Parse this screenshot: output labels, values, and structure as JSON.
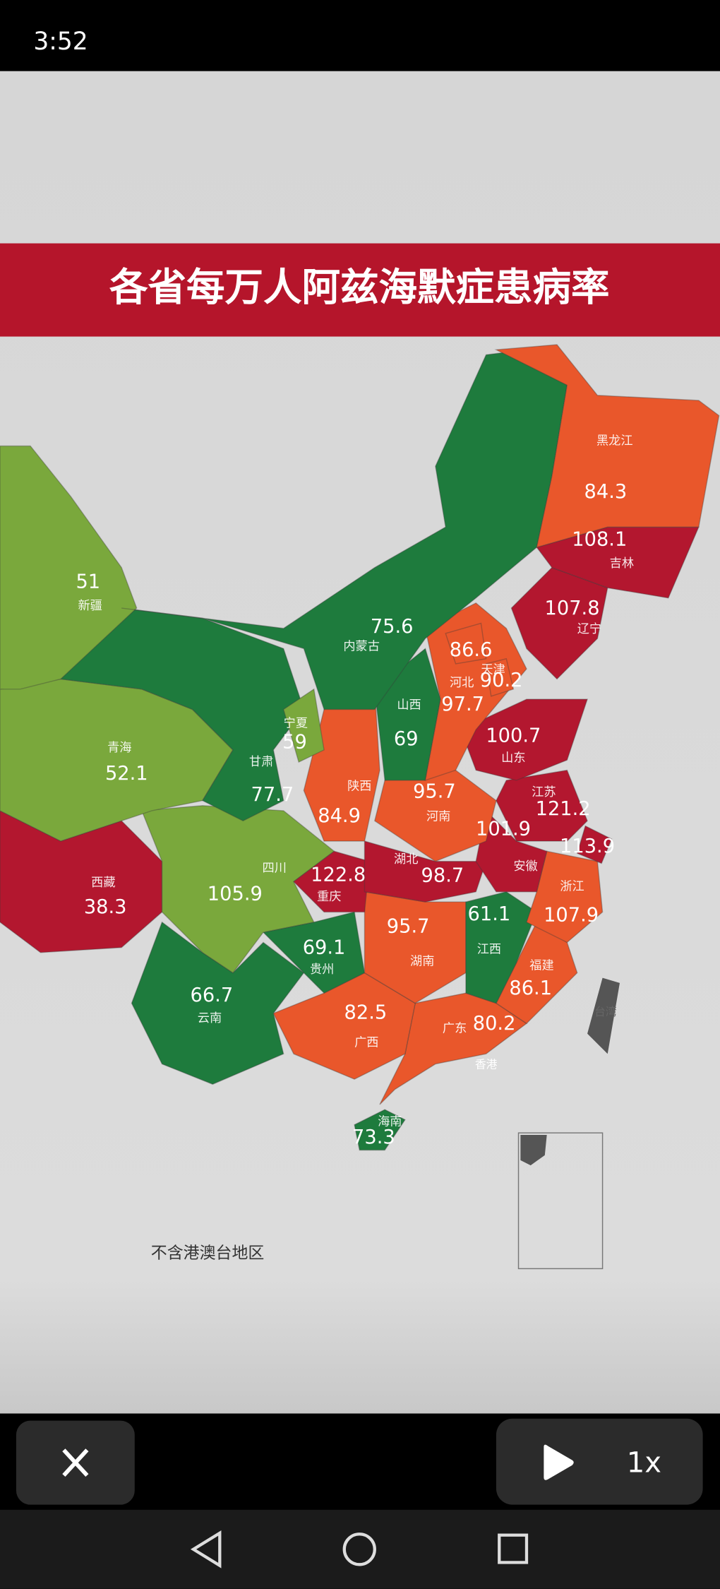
{
  "status_bar": {
    "time": "3:52"
  },
  "map": {
    "title": "各省每万人阿兹海默症患病率",
    "note": "不含港澳台地区",
    "labels": [
      "台湾",
      "香港"
    ],
    "regions": [
      {
        "name": "黑龙江",
        "value": 84.3,
        "color": "#e9572b"
      },
      {
        "name": "吉林",
        "value": 108.1,
        "color": "#b3172f"
      },
      {
        "name": "辽宁",
        "value": 107.8,
        "color": "#b3172f"
      },
      {
        "name": "内蒙古",
        "value": 75.6,
        "color": "#1e7b3d"
      },
      {
        "name": "新疆",
        "value": 51,
        "color": "#7aa83c"
      },
      {
        "name": null,
        "value": 86.6,
        "color": "#e9572b"
      },
      {
        "name": "天津",
        "value": 90.2,
        "color": "#e9572b"
      },
      {
        "name": "河北",
        "value": 97.7,
        "color": "#e9572b"
      },
      {
        "name": "山西",
        "value": 69,
        "color": "#1e7b3d"
      },
      {
        "name": "宁夏",
        "value": 59,
        "color": "#7aa83c"
      },
      {
        "name": "甘肃",
        "value": 77.7,
        "color": "#1e7b3d"
      },
      {
        "name": "青海",
        "value": 52.1,
        "color": "#7aa83c"
      },
      {
        "name": "陕西",
        "value": 84.9,
        "color": "#e9572b"
      },
      {
        "name": "山东",
        "value": 100.7,
        "color": "#b3172f"
      },
      {
        "name": "河南",
        "value": 95.7,
        "color": "#e9572b"
      },
      {
        "name": "江苏",
        "value": 121.2,
        "color": "#b3172f"
      },
      {
        "name": null,
        "value": 113.9,
        "color": "#b3172f"
      },
      {
        "name": "安徽",
        "value": 101.9,
        "color": "#b3172f"
      },
      {
        "name": "湖北",
        "value": 98.7,
        "color": "#e9572b"
      },
      {
        "name": "重庆",
        "value": 122.8,
        "color": "#b3172f"
      },
      {
        "name": "四川",
        "value": 105.9,
        "color": "#b3172f"
      },
      {
        "name": "西藏",
        "value": 38.3,
        "color": "#7aa83c"
      },
      {
        "name": "浙江",
        "value": 107.9,
        "color": "#b3172f"
      },
      {
        "name": "江西",
        "value": 61.1,
        "color": "#1e7b3d"
      },
      {
        "name": "湖南",
        "value": 95.7,
        "color": "#e9572b"
      },
      {
        "name": "贵州",
        "value": 69.1,
        "color": "#1e7b3d"
      },
      {
        "name": "云南",
        "value": 66.7,
        "color": "#1e7b3d"
      },
      {
        "name": "福建",
        "value": 86.1,
        "color": "#e9572b"
      },
      {
        "name": "广西",
        "value": 82.5,
        "color": "#e9572b"
      },
      {
        "name": "广东",
        "value": 80.2,
        "color": "#e9572b"
      },
      {
        "name": "海南",
        "value": 73.3,
        "color": "#1e7b3d"
      }
    ]
  },
  "controls": {
    "speed": "1x"
  }
}
